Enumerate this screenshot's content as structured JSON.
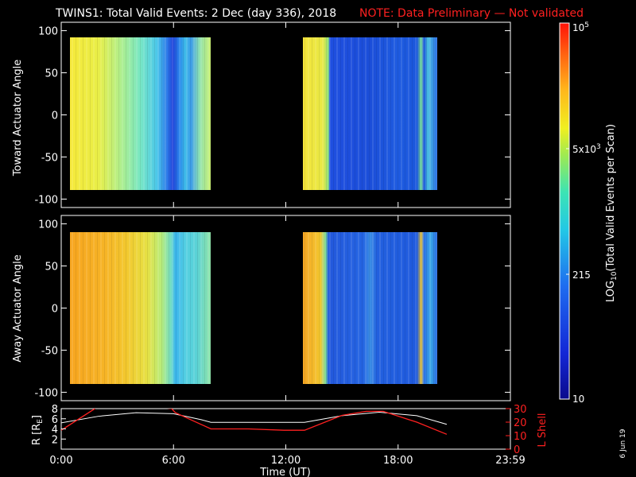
{
  "title": {
    "main": "TWINS1: Total Valid Events:  2 Dec (day 336), 2018",
    "note": "NOTE: Data Preliminary — Not validated"
  },
  "panels": {
    "top": {
      "ylabel": "Toward Actuator Angle"
    },
    "middle": {
      "ylabel": "Away Actuator Angle"
    },
    "bottom": {
      "ylabel_left": "R [R",
      "ylabel_left_sub": "E",
      "ylabel_left_end": "]",
      "ylabel_right": "L Shell"
    }
  },
  "angle_ticks": [
    "100",
    "50",
    "0",
    "-50",
    "-100"
  ],
  "r_ticks": [
    "8",
    "6",
    "4",
    "2"
  ],
  "l_ticks": [
    "30",
    "20",
    "10",
    "0"
  ],
  "time_ticks": [
    "0:00",
    "6:00",
    "12:00",
    "18:00",
    "23:59"
  ],
  "xlabel": "Time (UT)",
  "colorbar": {
    "label_main": "LOG",
    "label_sub": "10",
    "label_rest": "(Total Valid Events per Scan)",
    "tick_1e5_base": "10",
    "tick_1e5_exp": "5",
    "tick_5e3_base": "5x10",
    "tick_5e3_exp": "3",
    "tick_215": "215",
    "tick_10": "10"
  },
  "footer_date": "6 Jun 19",
  "colors": {
    "background": "#000000",
    "title_note": "#ff2020",
    "r_line": "#ffffff",
    "l_line": "#ff2020"
  },
  "chart_data": [
    {
      "type": "heatmap",
      "name": "toward",
      "ylabel": "Toward Actuator Angle",
      "ylim": [
        -110,
        110
      ],
      "xlim_hours": [
        0,
        24
      ],
      "angle_range": [
        -88,
        88
      ],
      "data_intervals_hours": [
        [
          0.0,
          8.0
        ],
        [
          13.1,
          20.8
        ]
      ],
      "value_scale": "log10 events 10 to 1e5"
    },
    {
      "type": "heatmap",
      "name": "away",
      "ylabel": "Away Actuator Angle",
      "ylim": [
        -110,
        110
      ],
      "xlim_hours": [
        0,
        24
      ],
      "angle_range": [
        -88,
        88
      ],
      "data_intervals_hours": [
        [
          0.0,
          8.0
        ],
        [
          13.1,
          20.8
        ]
      ],
      "value_scale": "log10 events 10 to 1e5"
    },
    {
      "type": "line",
      "name": "orbit",
      "xlim_hours": [
        0,
        24
      ],
      "y_left_lim": [
        0,
        8
      ],
      "y_right_lim": [
        0,
        30
      ],
      "series": [
        {
          "name": "R [RE]",
          "x": [
            0,
            2,
            4,
            6,
            7.5,
            8,
            10,
            13,
            15,
            17,
            19,
            20.6
          ],
          "values": [
            5.2,
            6.5,
            7.2,
            7.0,
            5.8,
            5.3,
            5.3,
            5.3,
            6.6,
            7.3,
            6.6,
            4.9
          ]
        },
        {
          "name": "L Shell",
          "x": [
            0,
            1.8,
            2,
            5.9,
            6.1,
            8,
            10,
            11.9,
            12,
            13,
            15,
            16.3,
            17.2,
            19,
            20.6
          ],
          "values": [
            14,
            30,
            36,
            30,
            27,
            15,
            15,
            14,
            14,
            14,
            25,
            28,
            28,
            20,
            11
          ]
        }
      ]
    }
  ]
}
